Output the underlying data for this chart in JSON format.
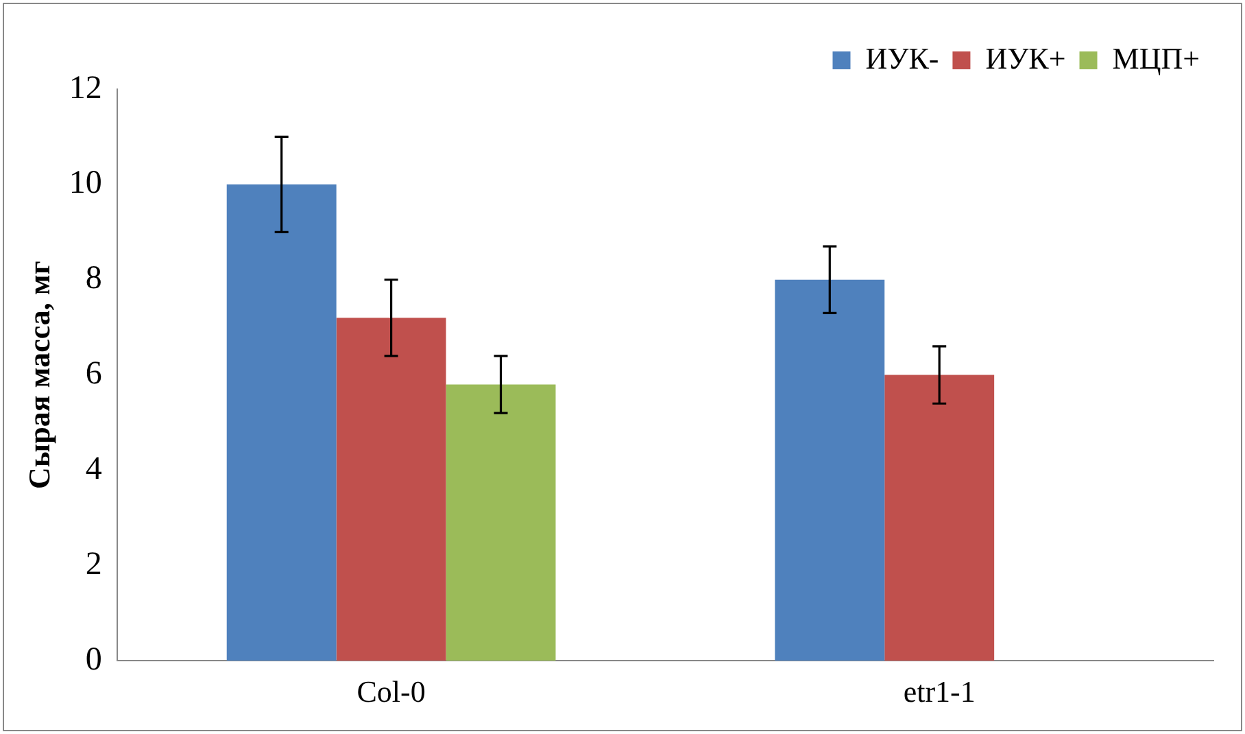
{
  "chart_data": {
    "type": "bar",
    "ylabel": "Сырая масса, мг",
    "categories": [
      "Col-0",
      "etr1-1"
    ],
    "series": [
      {
        "name": "ИУК-",
        "color": "#4f81bd",
        "values": [
          10,
          8
        ],
        "errors": [
          1,
          0.7
        ]
      },
      {
        "name": "ИУК+",
        "color": "#c0504d",
        "values": [
          7.2,
          6
        ],
        "errors": [
          0.8,
          0.6
        ]
      },
      {
        "name": "МЦП+",
        "color": "#9bbb59",
        "values": [
          5.8,
          null
        ],
        "errors": [
          0.6,
          null
        ]
      }
    ],
    "ylim": [
      0,
      12
    ],
    "yticks": [
      0,
      2,
      4,
      6,
      8,
      10,
      12
    ],
    "grid": false,
    "legend": "top right"
  }
}
